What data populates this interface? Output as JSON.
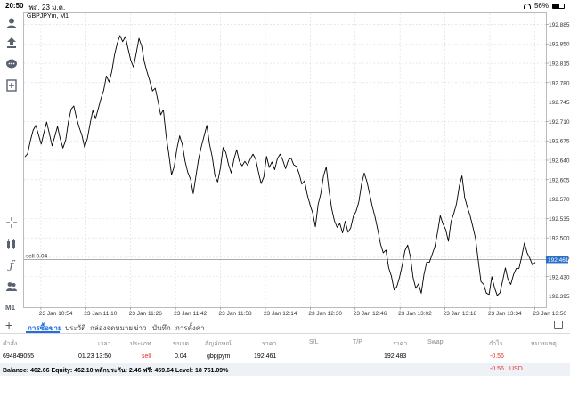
{
  "status_bar": {
    "time": "20:50",
    "date": "พฤ. 23 ม.ค.",
    "battery": "56%",
    "battery_level": 0.56
  },
  "sidebar": {
    "timeframe_label": "M1",
    "icons": [
      "account-icon",
      "trade-icon",
      "chat-icon",
      "new-window-icon",
      "crosshair-icon",
      "objects-icon",
      "indicators-icon",
      "people-icon"
    ]
  },
  "chart_data": {
    "type": "line",
    "symbol_label": "GBPJPYm, M1",
    "y_ticks": [
      "192.885",
      "192.850",
      "192.815",
      "192.780",
      "192.745",
      "192.710",
      "192.675",
      "192.640",
      "192.605",
      "192.570",
      "192.535",
      "192.500",
      "192.465",
      "192.430",
      "192.395"
    ],
    "ylim": [
      192.375,
      192.905
    ],
    "x_ticks": [
      "23 Jan 10:54",
      "23 Jan 11:10",
      "23 Jan 11:26",
      "23 Jan 11:42",
      "23 Jan 11:58",
      "23 Jan 12:14",
      "23 Jan 12:30",
      "23 Jan 12:46",
      "23 Jan 13:02",
      "23 Jan 13:18",
      "23 Jan 13:34",
      "23 Jan 13:50"
    ],
    "x_start": "23 Jan 10:48",
    "x_end": "23 Jan 13:54",
    "order_line": {
      "label": "sell 0.04",
      "price": 192.461
    },
    "current_price": "192.461",
    "series": [
      {
        "values": [
          192.646,
          192.652,
          192.675,
          192.694,
          192.703,
          192.686,
          192.669,
          192.69,
          192.709,
          192.688,
          192.666,
          192.683,
          192.701,
          192.679,
          192.662,
          192.676,
          192.709,
          192.732,
          192.738,
          192.716,
          192.699,
          192.685,
          192.663,
          192.679,
          192.706,
          192.73,
          192.715,
          192.733,
          192.751,
          192.766,
          192.792,
          192.781,
          192.8,
          192.83,
          192.851,
          192.865,
          192.854,
          192.863,
          192.841,
          192.82,
          192.808,
          192.833,
          192.86,
          192.846,
          192.817,
          192.799,
          192.783,
          192.765,
          192.77,
          192.747,
          192.722,
          192.731,
          192.684,
          192.651,
          192.614,
          192.629,
          192.661,
          192.684,
          192.668,
          192.638,
          192.618,
          192.606,
          192.58,
          192.612,
          192.643,
          192.665,
          192.684,
          192.703,
          192.669,
          192.646,
          192.612,
          192.601,
          192.626,
          192.663,
          192.654,
          192.632,
          192.617,
          192.642,
          192.659,
          192.638,
          192.63,
          192.638,
          192.631,
          192.642,
          192.651,
          192.642,
          192.619,
          192.598,
          192.61,
          192.647,
          192.627,
          192.637,
          192.623,
          192.643,
          192.651,
          192.64,
          192.625,
          192.64,
          192.644,
          192.632,
          192.629,
          192.616,
          192.597,
          192.603,
          192.578,
          192.56,
          192.545,
          192.52,
          192.56,
          192.58,
          192.612,
          192.628,
          192.586,
          192.553,
          192.531,
          192.519,
          192.526,
          192.509,
          192.53,
          192.51,
          192.518,
          192.539,
          192.548,
          192.565,
          192.597,
          192.617,
          192.601,
          192.579,
          192.556,
          192.537,
          192.514,
          192.489,
          192.473,
          192.478,
          192.446,
          192.431,
          192.406,
          192.412,
          192.429,
          192.451,
          192.477,
          192.487,
          192.466,
          192.428,
          192.409,
          192.417,
          192.4,
          192.434,
          192.456,
          192.456,
          192.47,
          192.484,
          192.51,
          192.54,
          192.525,
          192.515,
          192.494,
          192.53,
          192.544,
          192.562,
          192.593,
          192.612,
          192.573,
          192.555,
          192.54,
          192.52,
          192.499,
          192.459,
          192.421,
          192.416,
          192.4,
          192.398,
          192.43,
          192.41,
          192.396,
          192.401,
          192.423,
          192.446,
          192.424,
          192.416,
          192.434,
          192.445,
          192.445,
          192.466,
          192.491,
          192.473,
          192.463,
          192.451,
          192.456
        ]
      }
    ]
  },
  "tabs": [
    "การซื้อขาย",
    "ประวัติ",
    "กล่องจดหมาย",
    "ข่าว",
    "บันทึก",
    "การตั้งค่า"
  ],
  "columns": [
    "คำสั่ง",
    "เวลา",
    "ประเภท",
    "ขนาด",
    "สัญลักษณ์",
    "ราคา",
    "S/L",
    "T/P",
    "ราคา",
    "Swap",
    "กำไร",
    "หมายเหตุ"
  ],
  "position": {
    "order": "694849055",
    "time": "01.23 13:50",
    "type": "sell",
    "size": "0.04",
    "symbol": "gbpjpym",
    "open_price": "192.461",
    "current_price": "192.483",
    "profit": "-0.56"
  },
  "balance": {
    "text": "Balance: 462.66 Equity: 462.10 หลักประกัน: 2.46 ฟรี: 459.64 Level: 18 751.09%",
    "profit": "-0.56",
    "currency": "USD"
  },
  "colors": {
    "accent": "#1f6fde",
    "loss": "#e0322d",
    "price_marker": "#2a6fc6",
    "grid": "#d9dbe0",
    "order_line": "#9aa0a8"
  }
}
